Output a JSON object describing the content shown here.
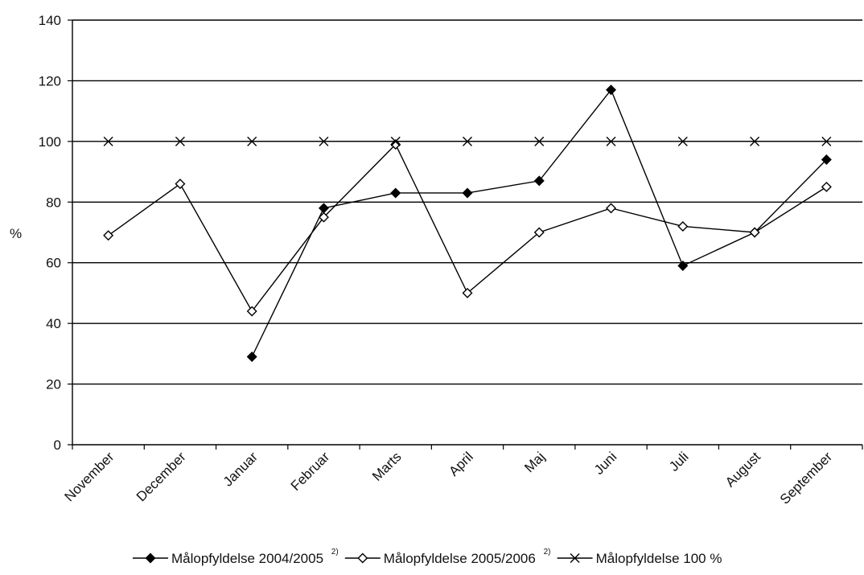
{
  "chart_data": {
    "type": "line",
    "title": "",
    "xlabel": "",
    "ylabel": "%",
    "ylim": [
      0,
      140
    ],
    "yticks": [
      0,
      20,
      40,
      60,
      80,
      100,
      120,
      140
    ],
    "grid": true,
    "legend_position": "bottom",
    "categories": [
      "November",
      "December",
      "Januar",
      "Februar",
      "Marts",
      "April",
      "Maj",
      "Juni",
      "Juli",
      "August",
      "September"
    ],
    "series": [
      {
        "name": "Målopfyldelse 2004/2005",
        "name_sup": "2)",
        "marker": "filled-diamond",
        "color": "#000000",
        "values": [
          null,
          null,
          29,
          78,
          83,
          83,
          87,
          117,
          59,
          70,
          94
        ]
      },
      {
        "name": "Målopfyldelse 2005/2006",
        "name_sup": "2)",
        "marker": "open-diamond",
        "color": "#000000",
        "values": [
          69,
          86,
          44,
          75,
          99,
          50,
          70,
          78,
          72,
          70,
          85
        ]
      },
      {
        "name": "Målopfyldelse 100 %",
        "name_sup": "",
        "marker": "x",
        "color": "#000000",
        "values": [
          100,
          100,
          100,
          100,
          100,
          100,
          100,
          100,
          100,
          100,
          100
        ]
      }
    ]
  }
}
